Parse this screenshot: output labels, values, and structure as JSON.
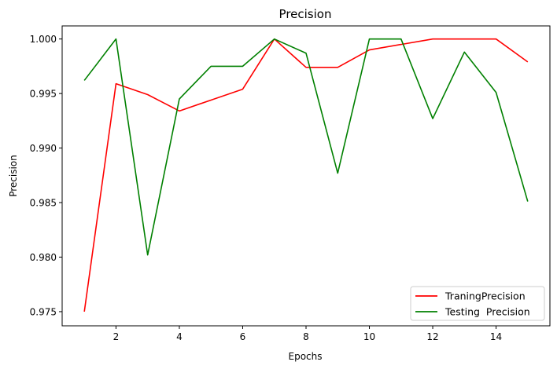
{
  "chart_data": {
    "type": "line",
    "title": "Precision",
    "xlabel": "Epochs",
    "ylabel": "Precision",
    "xlim": [
      0.3,
      15.7
    ],
    "ylim": [
      0.9737,
      1.0012
    ],
    "xticks": [
      2,
      4,
      6,
      8,
      10,
      12,
      14
    ],
    "yticks": [
      0.975,
      0.98,
      0.985,
      0.99,
      0.995,
      1.0
    ],
    "ytick_labels": [
      "0.975",
      "0.980",
      "0.985",
      "0.990",
      "0.995",
      "1.000"
    ],
    "grid": false,
    "legend_position": "lower right",
    "x": [
      1,
      2,
      3,
      4,
      5,
      6,
      7,
      8,
      9,
      10,
      11,
      12,
      13,
      14,
      15
    ],
    "series": [
      {
        "name": "TraningPrecision",
        "color": "#ff0000",
        "values": [
          0.975,
          0.9959,
          0.9949,
          0.9934,
          0.9944,
          0.9954,
          1.0,
          0.9974,
          0.9974,
          0.999,
          0.9995,
          1.0,
          1.0,
          1.0,
          0.9979
        ]
      },
      {
        "name": "Testing  Precision",
        "color": "#008000",
        "values": [
          0.9962,
          1.0,
          0.9802,
          0.9945,
          0.9975,
          0.9975,
          1.0,
          0.9987,
          0.9877,
          1.0,
          1.0,
          0.9927,
          0.9988,
          0.9951,
          0.9851
        ]
      }
    ]
  }
}
